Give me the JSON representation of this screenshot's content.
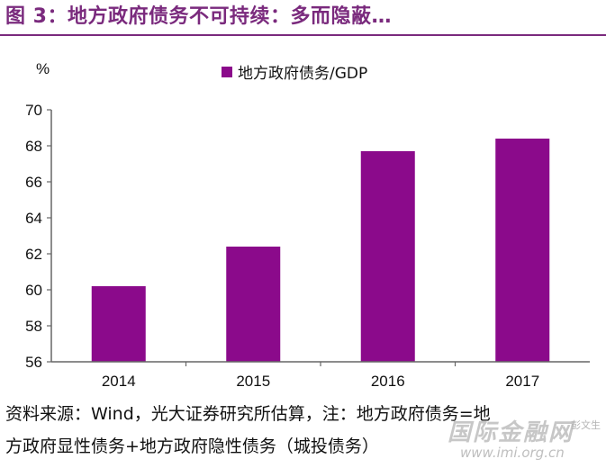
{
  "header": {
    "title": "图 3：地方政府债务不可持续：多而隐蔽…"
  },
  "chart_data": {
    "type": "bar",
    "title": "",
    "ylabel": "%",
    "xlabel": "",
    "categories": [
      "2014",
      "2015",
      "2016",
      "2017"
    ],
    "series": [
      {
        "name": "地方政府债务/GDP",
        "values": [
          60.2,
          62.4,
          67.7,
          68.4
        ]
      }
    ],
    "ylim": [
      56,
      70
    ],
    "yticks": [
      56,
      58,
      60,
      62,
      64,
      66,
      68,
      70
    ],
    "grid": false,
    "legend": "top-left",
    "colors": {
      "bar": "#8b0a8b",
      "axis": "#666666"
    }
  },
  "footer": {
    "source_line1": "资料来源：Wind，光大证券研究所估算，注：地方政府债务=地",
    "source_line2": "方政府显性债务+地方政府隐性债务（城投债务）"
  },
  "watermark": {
    "name": "国际金融网",
    "url": "www.imi.org.cn",
    "badge": "彭文生"
  }
}
